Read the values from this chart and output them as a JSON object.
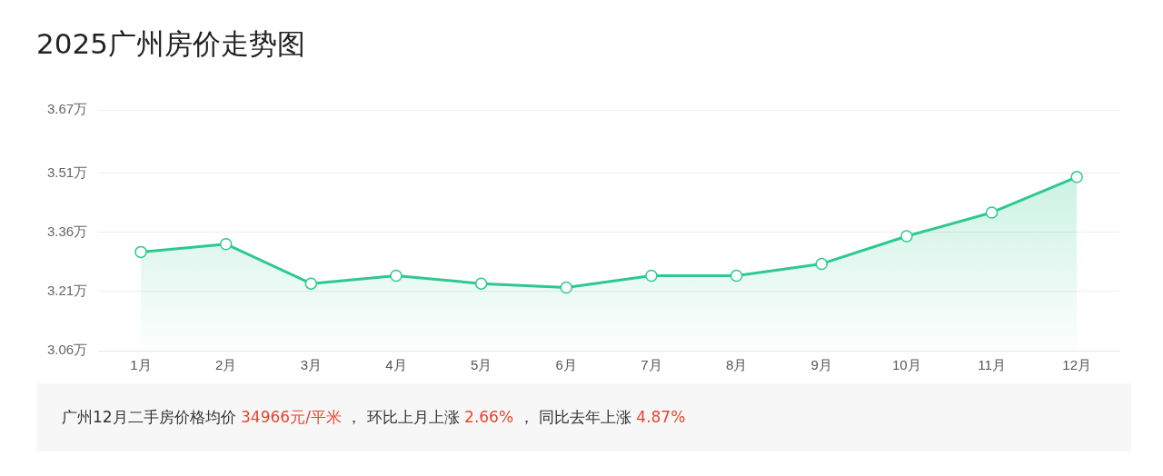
{
  "chart_data": {
    "type": "area",
    "title": "2025广州房价走势图",
    "categories": [
      "1月",
      "2月",
      "3月",
      "4月",
      "5月",
      "6月",
      "7月",
      "8月",
      "9月",
      "10月",
      "11月",
      "12月"
    ],
    "series": [
      {
        "color": "#2ec98e",
        "values": [
          3.31,
          3.33,
          3.23,
          3.25,
          3.23,
          3.22,
          3.25,
          3.25,
          3.28,
          3.35,
          3.41,
          3.5
        ]
      }
    ],
    "ylim": [
      3.06,
      3.67
    ],
    "yticks": [
      {
        "value": 3.06,
        "label": "3.06万"
      },
      {
        "value": 3.21,
        "label": "3.21万"
      },
      {
        "value": 3.36,
        "label": "3.36万"
      },
      {
        "value": 3.51,
        "label": "3.51万"
      },
      {
        "value": 3.67,
        "label": "3.67万"
      }
    ],
    "grid": "y",
    "marker": "circle",
    "legend": false,
    "annotations": [
      "广州12月二手房价格均价 34966元/平米 ， 环比上月上涨 2.66% ， 同比去年上涨 4.87%"
    ]
  }
}
